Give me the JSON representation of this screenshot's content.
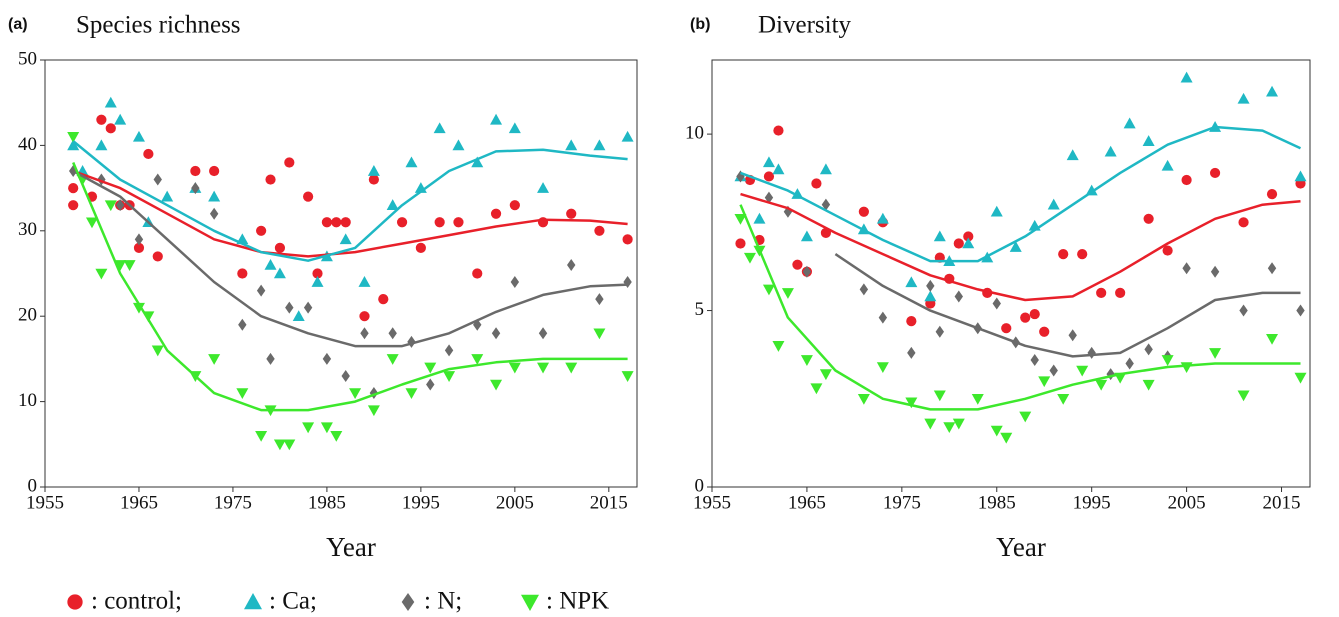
{
  "chart_data": [
    {
      "type": "scatter",
      "panel_label": "(a)",
      "title": "Species richness",
      "x_label": "Year",
      "xlim": [
        1955,
        2018
      ],
      "xticks": [
        1955,
        1965,
        1975,
        1985,
        1995,
        2005,
        2015
      ],
      "ylim": [
        0,
        50
      ],
      "yticks": [
        0,
        10,
        20,
        30,
        40,
        50
      ],
      "trend_x": [
        1958,
        1963,
        1968,
        1973,
        1978,
        1983,
        1988,
        1993,
        1998,
        2003,
        2008,
        2013,
        2017
      ],
      "series": [
        {
          "name": ": control;",
          "color": "#e8202a",
          "marker": "circle",
          "x": [
            1958,
            1958,
            1960,
            1961,
            1962,
            1963,
            1964,
            1965,
            1966,
            1967,
            1971,
            1973,
            1976,
            1978,
            1979,
            1980,
            1981,
            1983,
            1984,
            1985,
            1986,
            1987,
            1989,
            1990,
            1991,
            1993,
            1995,
            1997,
            1999,
            2001,
            2003,
            2005,
            2008,
            2011,
            2014,
            2017
          ],
          "values": [
            35,
            33,
            34,
            43,
            42,
            33,
            33,
            28,
            39,
            27,
            37,
            37,
            25,
            30,
            36,
            28,
            38,
            34,
            25,
            31,
            31,
            31,
            20,
            36,
            22,
            31,
            28,
            31,
            31,
            25,
            32,
            33,
            31,
            32,
            30,
            29
          ],
          "trend": [
            37,
            35,
            32,
            29,
            27.5,
            27,
            27.5,
            28.5,
            29.5,
            30.5,
            31.3,
            31.2,
            30.8
          ]
        },
        {
          "name": ": Ca;",
          "color": "#1fb8c4",
          "marker": "triangle-up",
          "x": [
            1958,
            1959,
            1961,
            1962,
            1963,
            1965,
            1966,
            1968,
            1971,
            1973,
            1976,
            1979,
            1980,
            1982,
            1984,
            1985,
            1987,
            1989,
            1990,
            1992,
            1994,
            1995,
            1997,
            1999,
            2001,
            2003,
            2005,
            2008,
            2011,
            2014,
            2017
          ],
          "values": [
            40,
            37,
            40,
            45,
            43,
            41,
            31,
            34,
            35,
            34,
            29,
            26,
            25,
            20,
            24,
            27,
            29,
            24,
            37,
            33,
            38,
            35,
            42,
            40,
            38,
            43,
            42,
            35,
            40,
            40,
            41
          ],
          "trend": [
            40.5,
            36,
            33,
            30,
            27.5,
            26.5,
            28,
            33,
            37,
            39.3,
            39.5,
            38.8,
            38.4
          ]
        },
        {
          "name": ": N;",
          "color": "#6a6a6a",
          "marker": "diamond",
          "x": [
            1958,
            1961,
            1963,
            1965,
            1967,
            1971,
            1973,
            1976,
            1978,
            1979,
            1981,
            1983,
            1985,
            1987,
            1989,
            1990,
            1992,
            1994,
            1996,
            1998,
            2001,
            2003,
            2005,
            2008,
            2011,
            2014,
            2017
          ],
          "values": [
            37,
            36,
            33,
            29,
            36,
            35,
            32,
            19,
            23,
            15,
            21,
            21,
            15,
            13,
            18,
            11,
            18,
            17,
            12,
            16,
            19,
            18,
            24,
            18,
            26,
            22,
            24
          ],
          "trend": [
            37,
            34,
            29,
            24,
            20,
            18,
            16.5,
            16.5,
            18,
            20.5,
            22.5,
            23.5,
            23.7
          ]
        },
        {
          "name": ": NPK",
          "color": "#3de82c",
          "marker": "triangle-down",
          "x": [
            1958,
            1959,
            1960,
            1961,
            1962,
            1963,
            1964,
            1965,
            1966,
            1967,
            1971,
            1973,
            1976,
            1978,
            1979,
            1980,
            1981,
            1983,
            1985,
            1986,
            1988,
            1990,
            1992,
            1994,
            1996,
            1998,
            2001,
            2003,
            2005,
            2008,
            2011,
            2014,
            2017
          ],
          "values": [
            41,
            36,
            31,
            25,
            33,
            26,
            26,
            21,
            20,
            16,
            13,
            15,
            11,
            6,
            9,
            5,
            5,
            7,
            7,
            6,
            11,
            9,
            15,
            11,
            14,
            13,
            15,
            12,
            14,
            14,
            14,
            18,
            13
          ],
          "trend": [
            38,
            25,
            16,
            11,
            9,
            9,
            10,
            12,
            13.8,
            14.6,
            15,
            15,
            15
          ]
        }
      ]
    },
    {
      "type": "scatter",
      "panel_label": "(b)",
      "title": "Diversity",
      "x_label": "Year",
      "xlim": [
        1955,
        2018
      ],
      "xticks": [
        1955,
        1965,
        1975,
        1985,
        1995,
        2005,
        2015
      ],
      "ylim": [
        0,
        12.1
      ],
      "yticks": [
        0,
        5,
        10
      ],
      "trend_x": [
        1958,
        1963,
        1968,
        1973,
        1978,
        1983,
        1988,
        1993,
        1998,
        2003,
        2008,
        2013,
        2017
      ],
      "series": [
        {
          "color": "#e8202a",
          "marker": "circle",
          "x": [
            1958,
            1959,
            1960,
            1961,
            1962,
            1964,
            1965,
            1966,
            1967,
            1971,
            1973,
            1976,
            1978,
            1979,
            1980,
            1981,
            1982,
            1984,
            1986,
            1988,
            1989,
            1990,
            1992,
            1994,
            1996,
            1998,
            2001,
            2003,
            2005,
            2008,
            2011,
            2014,
            2017
          ],
          "values": [
            6.9,
            8.7,
            7,
            8.8,
            10.1,
            6.3,
            6.1,
            8.6,
            7.2,
            7.8,
            7.5,
            4.7,
            5.2,
            6.5,
            5.9,
            6.9,
            7.1,
            5.5,
            4.5,
            4.8,
            4.9,
            4.4,
            6.6,
            6.6,
            5.5,
            5.5,
            7.6,
            6.7,
            8.7,
            8.9,
            7.5,
            8.3,
            8.6
          ],
          "trend": [
            8.3,
            7.9,
            7.2,
            6.6,
            6.0,
            5.6,
            5.3,
            5.4,
            6.1,
            6.9,
            7.6,
            8.0,
            8.1
          ]
        },
        {
          "color": "#1fb8c4",
          "marker": "triangle-up",
          "x": [
            1958,
            1960,
            1961,
            1962,
            1964,
            1965,
            1967,
            1971,
            1973,
            1976,
            1978,
            1979,
            1980,
            1982,
            1984,
            1985,
            1987,
            1989,
            1991,
            1993,
            1995,
            1997,
            1999,
            2001,
            2003,
            2005,
            2008,
            2011,
            2014,
            2017
          ],
          "values": [
            8.8,
            7.6,
            9.2,
            9.0,
            8.3,
            7.1,
            9.0,
            7.3,
            7.6,
            5.8,
            5.4,
            7.1,
            6.4,
            6.9,
            6.5,
            7.8,
            6.8,
            7.4,
            8.0,
            9.4,
            8.4,
            9.5,
            10.3,
            9.8,
            9.1,
            11.6,
            10.2,
            11,
            11.2,
            8.8
          ],
          "trend": [
            8.9,
            8.4,
            7.7,
            7.0,
            6.4,
            6.4,
            7.1,
            8.0,
            8.9,
            9.7,
            10.2,
            10.1,
            9.6
          ]
        },
        {
          "color": "#6a6a6a",
          "marker": "diamond",
          "x": [
            1958,
            1961,
            1963,
            1965,
            1967,
            1971,
            1973,
            1976,
            1978,
            1979,
            1981,
            1983,
            1985,
            1987,
            1989,
            1991,
            1993,
            1995,
            1997,
            1999,
            2001,
            2003,
            2005,
            2008,
            2011,
            2014,
            2017
          ],
          "values": [
            8.8,
            8.2,
            7.8,
            6.1,
            8.0,
            5.6,
            4.8,
            3.8,
            5.7,
            4.4,
            5.4,
            4.5,
            5.2,
            4.1,
            3.6,
            3.3,
            4.3,
            3.8,
            3.2,
            3.5,
            3.9,
            3.7,
            6.2,
            6.1,
            5.0,
            6.2,
            5.0
          ],
          "trend": [
            null,
            null,
            6.6,
            5.7,
            5.0,
            4.5,
            4.0,
            3.7,
            3.8,
            4.5,
            5.3,
            5.5,
            5.5
          ]
        },
        {
          "color": "#3de82c",
          "marker": "triangle-down",
          "x": [
            1958,
            1959,
            1960,
            1961,
            1962,
            1963,
            1965,
            1966,
            1967,
            1971,
            1973,
            1976,
            1978,
            1979,
            1980,
            1981,
            1983,
            1985,
            1986,
            1988,
            1990,
            1992,
            1994,
            1996,
            1998,
            2001,
            2003,
            2005,
            2008,
            2011,
            2014,
            2017
          ],
          "values": [
            7.6,
            6.5,
            6.7,
            5.6,
            4.0,
            5.5,
            3.6,
            2.8,
            3.2,
            2.5,
            3.4,
            2.4,
            1.8,
            2.6,
            1.7,
            1.8,
            2.5,
            1.6,
            1.4,
            2.0,
            3.0,
            2.5,
            3.3,
            2.9,
            3.1,
            2.9,
            3.6,
            3.4,
            3.8,
            2.6,
            4.2,
            3.1
          ],
          "trend": [
            8.0,
            4.8,
            3.3,
            2.5,
            2.2,
            2.2,
            2.5,
            2.9,
            3.2,
            3.4,
            3.5,
            3.5,
            3.5
          ]
        }
      ]
    }
  ]
}
